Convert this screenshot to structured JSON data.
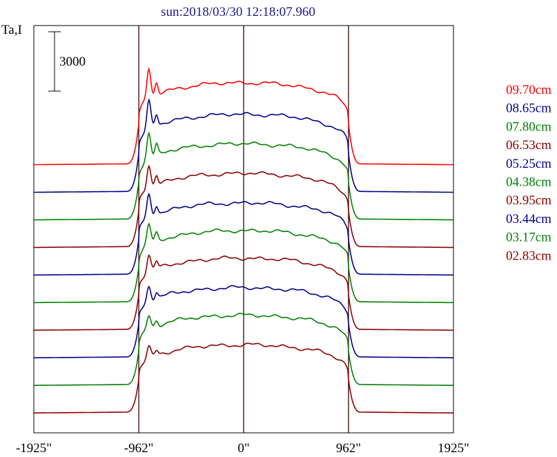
{
  "chart_data": {
    "type": "line",
    "title": "sun:2018/03/30 12:18:07.960",
    "ylabel": "Ta,I",
    "scale_bar_label": "3000",
    "x_tick_labels": [
      "-1925\"",
      "-962\"",
      "0\"",
      "962\"",
      "1925\""
    ],
    "x_ticks": [
      -1925,
      -962,
      0,
      962,
      1925
    ],
    "xlim": [
      -1925,
      1925
    ],
    "vertical_lines": [
      -962,
      0,
      962
    ],
    "offset_step": 1700,
    "series": [
      {
        "name": "02.83cm",
        "color": "#8b0000",
        "disk_level": 3900,
        "base_level": 500
      },
      {
        "name": "03.17cm",
        "color": "#008000",
        "disk_level": 4000,
        "base_level": 500
      },
      {
        "name": "03.44cm",
        "color": "#00008b",
        "disk_level": 4000,
        "base_level": 500
      },
      {
        "name": "03.95cm",
        "color": "#8b0000",
        "disk_level": 4100,
        "base_level": 500
      },
      {
        "name": "04.38cm",
        "color": "#008000",
        "disk_level": 4100,
        "base_level": 500
      },
      {
        "name": "05.25cm",
        "color": "#00008b",
        "disk_level": 4100,
        "base_level": 500
      },
      {
        "name": "06.53cm",
        "color": "#8b0000",
        "disk_level": 4200,
        "base_level": 500
      },
      {
        "name": "07.80cm",
        "color": "#008000",
        "disk_level": 4300,
        "base_level": 500
      },
      {
        "name": "08.65cm",
        "color": "#00008b",
        "disk_level": 4400,
        "base_level": 500
      },
      {
        "name": "09.70cm",
        "color": "#ff0000",
        "disk_level": 4600,
        "base_level": 500
      }
    ]
  }
}
